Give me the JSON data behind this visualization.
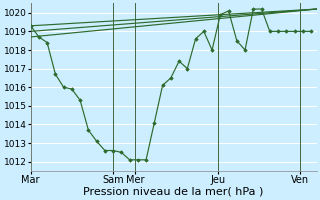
{
  "background_color": "#cceeff",
  "grid_color": "#aaddcc",
  "line_color": "#2d6a2d",
  "marker_color": "#2d6a2d",
  "ylim": [
    1011.5,
    1020.5
  ],
  "yticks": [
    1012,
    1013,
    1014,
    1015,
    1016,
    1017,
    1018,
    1019,
    1020
  ],
  "xlabel": "Pression niveau de la mer( hPa )",
  "xlabel_fontsize": 8,
  "tick_fontsize": 6.5,
  "day_label_fontsize": 7,
  "day_lines_x": [
    0,
    60,
    76,
    136,
    196
  ],
  "day_labels": [
    "Mar",
    "Sam",
    "Mer",
    "Jeu",
    "Ven"
  ],
  "total_hours": 208,
  "main_series": {
    "x": [
      0,
      6,
      12,
      18,
      24,
      30,
      36,
      42,
      48,
      54,
      60,
      66,
      72,
      78,
      84,
      90,
      96,
      102,
      108,
      114,
      120,
      126,
      132,
      138,
      144,
      150,
      156,
      162,
      168,
      174,
      180,
      186,
      192,
      198,
      204
    ],
    "y": [
      1019.3,
      1018.7,
      1018.4,
      1016.7,
      1016.0,
      1015.9,
      1015.3,
      1013.7,
      1013.1,
      1012.6,
      1012.6,
      1012.5,
      1012.1,
      1012.1,
      1012.1,
      1014.1,
      1016.1,
      1016.5,
      1017.4,
      1017.0,
      1018.6,
      1019.0,
      1018.0,
      1019.9,
      1020.1,
      1018.5,
      1018.0,
      1020.2,
      1020.2,
      1019.0,
      1019.0,
      1019.0,
      1019.0,
      1019.0,
      1019.0
    ]
  },
  "smooth_line1": {
    "x": [
      0,
      208
    ],
    "y": [
      1019.3,
      1020.2
    ]
  },
  "smooth_line2": {
    "x": [
      0,
      208
    ],
    "y": [
      1019.0,
      1020.2
    ]
  },
  "smooth_line3": {
    "x": [
      0,
      208
    ],
    "y": [
      1018.7,
      1020.2
    ]
  }
}
